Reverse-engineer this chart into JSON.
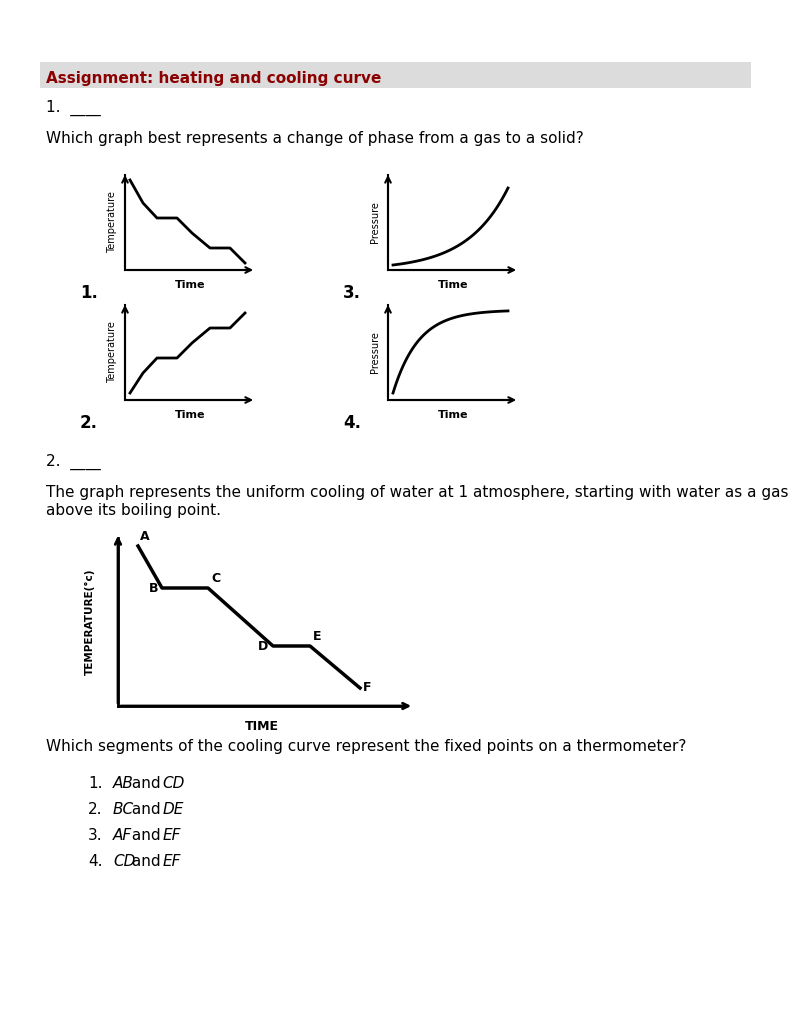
{
  "title": "Assignment: heating and cooling curve",
  "title_color": "#8B0000",
  "title_bg": "#DCDCDC",
  "q1_label": "1.  ____",
  "q1_text": "Which graph best represents a change of phase from a gas to a solid?",
  "q2_label": "2.  ____",
  "q2_text_line1": "The graph represents the uniform cooling of water at 1 atmosphere, starting with water as a gas",
  "q2_text_line2": "above its boiling point.",
  "q2_question": "Which segments of the cooling curve represent the fixed points on a thermometer?",
  "background": "#FFFFFF"
}
